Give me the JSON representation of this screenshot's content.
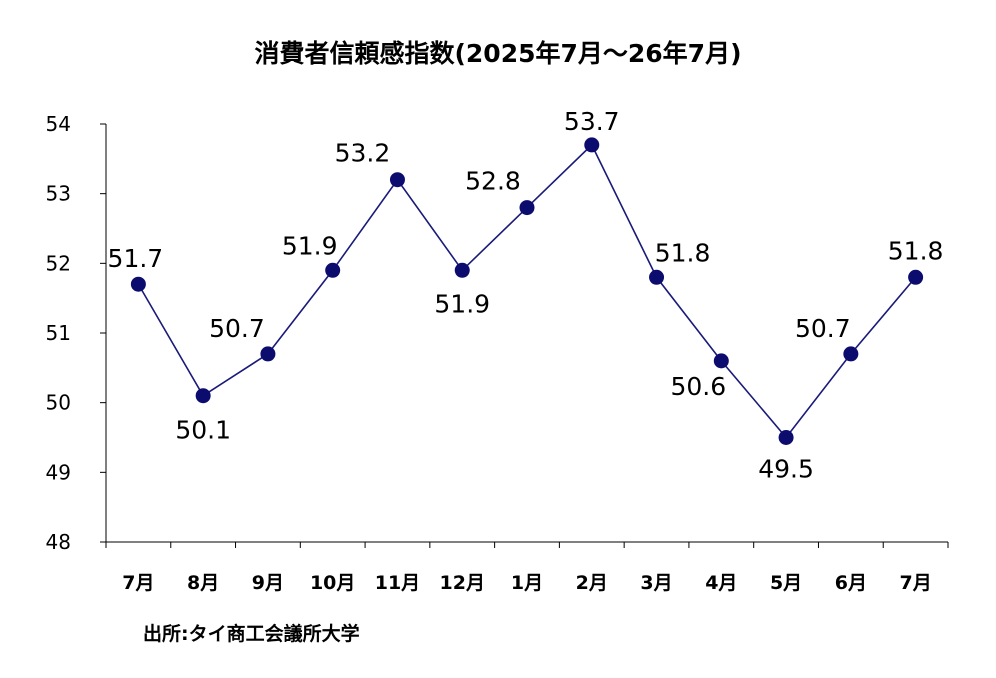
{
  "chart_data": {
    "type": "line",
    "title": "消費者信頼感指数(2025年7月～26年7月)",
    "categories": [
      "7月",
      "8月",
      "9月",
      "10月",
      "11月",
      "12月",
      "1月",
      "2月",
      "3月",
      "4月",
      "5月",
      "6月",
      "7月"
    ],
    "series": [
      {
        "values": [
          51.7,
          50.1,
          50.7,
          51.9,
          53.2,
          51.9,
          52.8,
          53.7,
          51.8,
          50.6,
          49.5,
          50.7,
          51.8
        ]
      }
    ],
    "data_labels": [
      "51.7",
      "50.1",
      "50.7",
      "51.9",
      "53.2",
      "51.9",
      "52.8",
      "53.7",
      "51.8",
      "50.6",
      "49.5",
      "50.7",
      "51.8"
    ],
    "ylim": [
      48,
      54
    ],
    "yticks": [
      "48",
      "49",
      "50",
      "51",
      "52",
      "53",
      "54"
    ],
    "xlabel": "",
    "ylabel": "",
    "grid": false,
    "line_color": "#1a1a7a",
    "marker_color": "#0c0c6e"
  },
  "source": "出所:タイ商工会議所大学"
}
